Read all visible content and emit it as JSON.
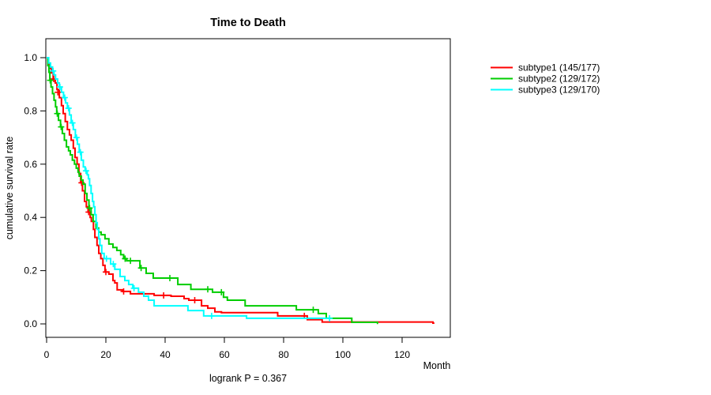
{
  "title": "Time to Death",
  "xlabel": "Month",
  "ylabel": "cumulative survival rate",
  "footnote": "logrank P = 0.367",
  "legend": [
    {
      "label": "subtype1 (145/177)",
      "color": "#FF0000"
    },
    {
      "label": "subtype2 (129/172)",
      "color": "#00CD00"
    },
    {
      "label": "subtype3 (129/170)",
      "color": "#00FFFF"
    }
  ],
  "chart_data": {
    "type": "line",
    "subtype": "kaplan-meier-step-curves",
    "title": "Time to Death",
    "xlabel": "Month",
    "ylabel": "cumulative survival rate",
    "annotation": "logrank P = 0.367",
    "xlim": [
      0,
      136
    ],
    "ylim": [
      0,
      1
    ],
    "xticks": [
      0,
      20,
      40,
      60,
      80,
      100,
      120
    ],
    "yticks": [
      0.0,
      0.2,
      0.4,
      0.6,
      0.8,
      1.0
    ],
    "grid": false,
    "legend_position": "right-outside",
    "series": [
      {
        "name": "subtype1 (145/177)",
        "events": "145/177",
        "color": "#FF0000",
        "end_month": 130.9,
        "points": [
          [
            0,
            1.0
          ],
          [
            0.5,
            0.977
          ],
          [
            1,
            0.96
          ],
          [
            1.6,
            0.943
          ],
          [
            2.2,
            0.92
          ],
          [
            2.9,
            0.905
          ],
          [
            3.5,
            0.88
          ],
          [
            4.3,
            0.85
          ],
          [
            5,
            0.82
          ],
          [
            5.6,
            0.79
          ],
          [
            6.3,
            0.76
          ],
          [
            7,
            0.73
          ],
          [
            7.7,
            0.71
          ],
          [
            8.3,
            0.69
          ],
          [
            9,
            0.66
          ],
          [
            9.6,
            0.625
          ],
          [
            10.3,
            0.6
          ],
          [
            10.9,
            0.565
          ],
          [
            11.5,
            0.53
          ],
          [
            12.1,
            0.5
          ],
          [
            12.8,
            0.46
          ],
          [
            13.4,
            0.44
          ],
          [
            14,
            0.42
          ],
          [
            14.7,
            0.4
          ],
          [
            15.1,
            0.385
          ],
          [
            15.8,
            0.355
          ],
          [
            16.3,
            0.325
          ],
          [
            17,
            0.295
          ],
          [
            17.6,
            0.265
          ],
          [
            18.3,
            0.245
          ],
          [
            19,
            0.22
          ],
          [
            19.7,
            0.195
          ],
          [
            21,
            0.187
          ],
          [
            22.4,
            0.163
          ],
          [
            23,
            0.154
          ],
          [
            23.8,
            0.128
          ],
          [
            25.6,
            0.122
          ],
          [
            28.3,
            0.113
          ],
          [
            36.3,
            0.107
          ],
          [
            42,
            0.104
          ],
          [
            46.4,
            0.095
          ],
          [
            48,
            0.089
          ],
          [
            52.3,
            0.068
          ],
          [
            54.4,
            0.059
          ],
          [
            56.8,
            0.045
          ],
          [
            59,
            0.042
          ],
          [
            78,
            0.03
          ],
          [
            88,
            0.016
          ],
          [
            93,
            0.007
          ],
          [
            130.4,
            0.003
          ]
        ],
        "censors": [
          [
            2.4,
            0.92
          ],
          [
            3.8,
            0.87
          ],
          [
            11.8,
            0.53
          ],
          [
            14.2,
            0.42
          ],
          [
            20,
            0.195
          ],
          [
            26,
            0.122
          ],
          [
            39.5,
            0.107
          ],
          [
            50,
            0.089
          ],
          [
            87,
            0.03
          ]
        ]
      },
      {
        "name": "subtype2 (129/172)",
        "events": "129/172",
        "color": "#00CD00",
        "end_month": 111.9,
        "points": [
          [
            0,
            1.0
          ],
          [
            0.4,
            0.97
          ],
          [
            0.8,
            0.945
          ],
          [
            1.1,
            0.915
          ],
          [
            1.5,
            0.89
          ],
          [
            2,
            0.865
          ],
          [
            2.5,
            0.84
          ],
          [
            3,
            0.815
          ],
          [
            3.4,
            0.79
          ],
          [
            4,
            0.765
          ],
          [
            4.7,
            0.74
          ],
          [
            5.3,
            0.715
          ],
          [
            6,
            0.69
          ],
          [
            6.7,
            0.665
          ],
          [
            7.4,
            0.65
          ],
          [
            8,
            0.635
          ],
          [
            8.7,
            0.615
          ],
          [
            9.4,
            0.6
          ],
          [
            10,
            0.585
          ],
          [
            10.6,
            0.57
          ],
          [
            11,
            0.555
          ],
          [
            11.7,
            0.54
          ],
          [
            12.3,
            0.525
          ],
          [
            13,
            0.49
          ],
          [
            13.6,
            0.465
          ],
          [
            14.3,
            0.435
          ],
          [
            15,
            0.41
          ],
          [
            15.7,
            0.385
          ],
          [
            16.7,
            0.36
          ],
          [
            17.6,
            0.345
          ],
          [
            18.4,
            0.335
          ],
          [
            19.7,
            0.32
          ],
          [
            21,
            0.3
          ],
          [
            22.4,
            0.287
          ],
          [
            23.7,
            0.276
          ],
          [
            25,
            0.26
          ],
          [
            26,
            0.245
          ],
          [
            27,
            0.237
          ],
          [
            31.5,
            0.21
          ],
          [
            33.6,
            0.19
          ],
          [
            36,
            0.172
          ],
          [
            44.3,
            0.148
          ],
          [
            48.7,
            0.13
          ],
          [
            56,
            0.119
          ],
          [
            59.7,
            0.1
          ],
          [
            61,
            0.089
          ],
          [
            67,
            0.068
          ],
          [
            84.3,
            0.053
          ],
          [
            91.7,
            0.039
          ],
          [
            94.4,
            0.021
          ],
          [
            103,
            0.006
          ],
          [
            111.7,
            0.002
          ]
        ],
        "censors": [
          [
            1.2,
            0.915
          ],
          [
            3.6,
            0.79
          ],
          [
            4.9,
            0.74
          ],
          [
            14.5,
            0.435
          ],
          [
            26.5,
            0.245
          ],
          [
            28.3,
            0.237
          ],
          [
            31.9,
            0.21
          ],
          [
            41.6,
            0.172
          ],
          [
            54.4,
            0.13
          ],
          [
            59,
            0.119
          ],
          [
            90,
            0.053
          ]
        ]
      },
      {
        "name": "subtype3 (129/170)",
        "events": "129/170",
        "color": "#00FFFF",
        "end_month": 95.7,
        "points": [
          [
            0,
            1.0
          ],
          [
            0.7,
            0.98
          ],
          [
            1.3,
            0.965
          ],
          [
            2,
            0.95
          ],
          [
            2.5,
            0.935
          ],
          [
            3,
            0.92
          ],
          [
            3.7,
            0.905
          ],
          [
            4.3,
            0.89
          ],
          [
            5,
            0.87
          ],
          [
            5.7,
            0.85
          ],
          [
            6.4,
            0.83
          ],
          [
            7,
            0.81
          ],
          [
            7.7,
            0.785
          ],
          [
            8.3,
            0.755
          ],
          [
            9,
            0.73
          ],
          [
            9.7,
            0.7
          ],
          [
            10.4,
            0.675
          ],
          [
            11,
            0.645
          ],
          [
            11.7,
            0.615
          ],
          [
            12.4,
            0.59
          ],
          [
            13,
            0.575
          ],
          [
            13.7,
            0.56
          ],
          [
            14.1,
            0.545
          ],
          [
            14.5,
            0.52
          ],
          [
            15,
            0.49
          ],
          [
            15.5,
            0.46
          ],
          [
            15.9,
            0.44
          ],
          [
            16.3,
            0.41
          ],
          [
            16.7,
            0.38
          ],
          [
            17.1,
            0.355
          ],
          [
            17.6,
            0.32
          ],
          [
            18,
            0.295
          ],
          [
            18.6,
            0.265
          ],
          [
            19.4,
            0.245
          ],
          [
            21.6,
            0.225
          ],
          [
            23,
            0.205
          ],
          [
            24.8,
            0.178
          ],
          [
            26.4,
            0.163
          ],
          [
            27.7,
            0.148
          ],
          [
            29.1,
            0.134
          ],
          [
            31,
            0.119
          ],
          [
            32.8,
            0.104
          ],
          [
            34.4,
            0.089
          ],
          [
            36.3,
            0.068
          ],
          [
            47.7,
            0.05
          ],
          [
            53,
            0.03
          ],
          [
            67.5,
            0.021
          ]
        ],
        "censors": [
          [
            2.2,
            0.95
          ],
          [
            4.5,
            0.89
          ],
          [
            6.1,
            0.85
          ],
          [
            7.4,
            0.81
          ],
          [
            8.7,
            0.755
          ],
          [
            10.1,
            0.7
          ],
          [
            11.4,
            0.645
          ],
          [
            13.3,
            0.575
          ],
          [
            20.2,
            0.245
          ],
          [
            22.5,
            0.225
          ],
          [
            29.5,
            0.134
          ],
          [
            55.7,
            0.03
          ],
          [
            95.5,
            0.021
          ]
        ]
      }
    ]
  }
}
